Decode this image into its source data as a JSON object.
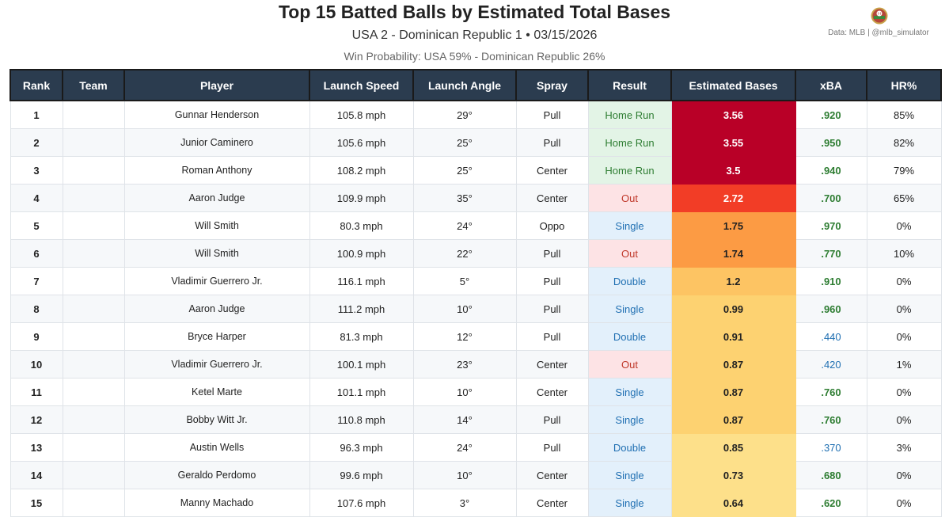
{
  "header": {
    "title": "Top 15 Batted Balls by Estimated Total Bases",
    "subtitle": "USA 2 - Dominican Republic 1  •  03/15/2026",
    "win_probability": "Win Probability: USA 59% - Dominican Republic 26%",
    "credit": "Data: MLB  |  @mlb_simulator"
  },
  "colors": {
    "header_bg": "#2b3c4f",
    "home_run_bg": "#e3f4e6",
    "out_bg": "#fde3e5",
    "hit_bg": "#e3f0fb",
    "xba_good": "#2e7d32",
    "xba_low": "#1f6fb2"
  },
  "chart_data": {
    "type": "table",
    "title": "Top 15 Batted Balls by Estimated Total Bases",
    "columns": [
      "Rank",
      "Team",
      "Player",
      "Launch Speed",
      "Launch Angle",
      "Spray",
      "Result",
      "Estimated Bases",
      "xBA",
      "HR%"
    ],
    "rows": [
      {
        "rank": "1",
        "team": "",
        "player": "Gunnar Henderson",
        "speed": "105.8 mph",
        "angle": "29°",
        "spray": "Pull",
        "result": "Home Run",
        "est_bases": 3.56,
        "xba": ".920",
        "hr": "85%"
      },
      {
        "rank": "2",
        "team": "",
        "player": "Junior Caminero",
        "speed": "105.6 mph",
        "angle": "25°",
        "spray": "Pull",
        "result": "Home Run",
        "est_bases": 3.55,
        "xba": ".950",
        "hr": "82%"
      },
      {
        "rank": "3",
        "team": "",
        "player": "Roman Anthony",
        "speed": "108.2 mph",
        "angle": "25°",
        "spray": "Center",
        "result": "Home Run",
        "est_bases": 3.5,
        "xba": ".940",
        "hr": "79%"
      },
      {
        "rank": "4",
        "team": "",
        "player": "Aaron Judge",
        "speed": "109.9 mph",
        "angle": "35°",
        "spray": "Center",
        "result": "Out",
        "est_bases": 2.72,
        "xba": ".700",
        "hr": "65%"
      },
      {
        "rank": "5",
        "team": "",
        "player": "Will Smith",
        "speed": "80.3 mph",
        "angle": "24°",
        "spray": "Oppo",
        "result": "Single",
        "est_bases": 1.75,
        "xba": ".970",
        "hr": "0%"
      },
      {
        "rank": "6",
        "team": "",
        "player": "Will Smith",
        "speed": "100.9 mph",
        "angle": "22°",
        "spray": "Pull",
        "result": "Out",
        "est_bases": 1.74,
        "xba": ".770",
        "hr": "10%"
      },
      {
        "rank": "7",
        "team": "",
        "player": "Vladimir Guerrero Jr.",
        "speed": "116.1 mph",
        "angle": "5°",
        "spray": "Pull",
        "result": "Double",
        "est_bases": 1.2,
        "xba": ".910",
        "hr": "0%"
      },
      {
        "rank": "8",
        "team": "",
        "player": "Aaron Judge",
        "speed": "111.2 mph",
        "angle": "10°",
        "spray": "Pull",
        "result": "Single",
        "est_bases": 0.99,
        "xba": ".960",
        "hr": "0%"
      },
      {
        "rank": "9",
        "team": "",
        "player": "Bryce Harper",
        "speed": "81.3 mph",
        "angle": "12°",
        "spray": "Pull",
        "result": "Double",
        "est_bases": 0.91,
        "xba": ".440",
        "hr": "0%"
      },
      {
        "rank": "10",
        "team": "",
        "player": "Vladimir Guerrero Jr.",
        "speed": "100.1 mph",
        "angle": "23°",
        "spray": "Center",
        "result": "Out",
        "est_bases": 0.87,
        "xba": ".420",
        "hr": "1%"
      },
      {
        "rank": "11",
        "team": "",
        "player": "Ketel Marte",
        "speed": "101.1 mph",
        "angle": "10°",
        "spray": "Center",
        "result": "Single",
        "est_bases": 0.87,
        "xba": ".760",
        "hr": "0%"
      },
      {
        "rank": "12",
        "team": "",
        "player": "Bobby Witt Jr.",
        "speed": "110.8 mph",
        "angle": "14°",
        "spray": "Pull",
        "result": "Single",
        "est_bases": 0.87,
        "xba": ".760",
        "hr": "0%"
      },
      {
        "rank": "13",
        "team": "",
        "player": "Austin Wells",
        "speed": "96.3 mph",
        "angle": "24°",
        "spray": "Pull",
        "result": "Double",
        "est_bases": 0.85,
        "xba": ".370",
        "hr": "3%"
      },
      {
        "rank": "14",
        "team": "",
        "player": "Geraldo Perdomo",
        "speed": "99.6 mph",
        "angle": "10°",
        "spray": "Center",
        "result": "Single",
        "est_bases": 0.73,
        "xba": ".680",
        "hr": "0%"
      },
      {
        "rank": "15",
        "team": "",
        "player": "Manny Machado",
        "speed": "107.6 mph",
        "angle": "3°",
        "spray": "Center",
        "result": "Single",
        "est_bases": 0.64,
        "xba": ".620",
        "hr": "0%"
      }
    ]
  }
}
